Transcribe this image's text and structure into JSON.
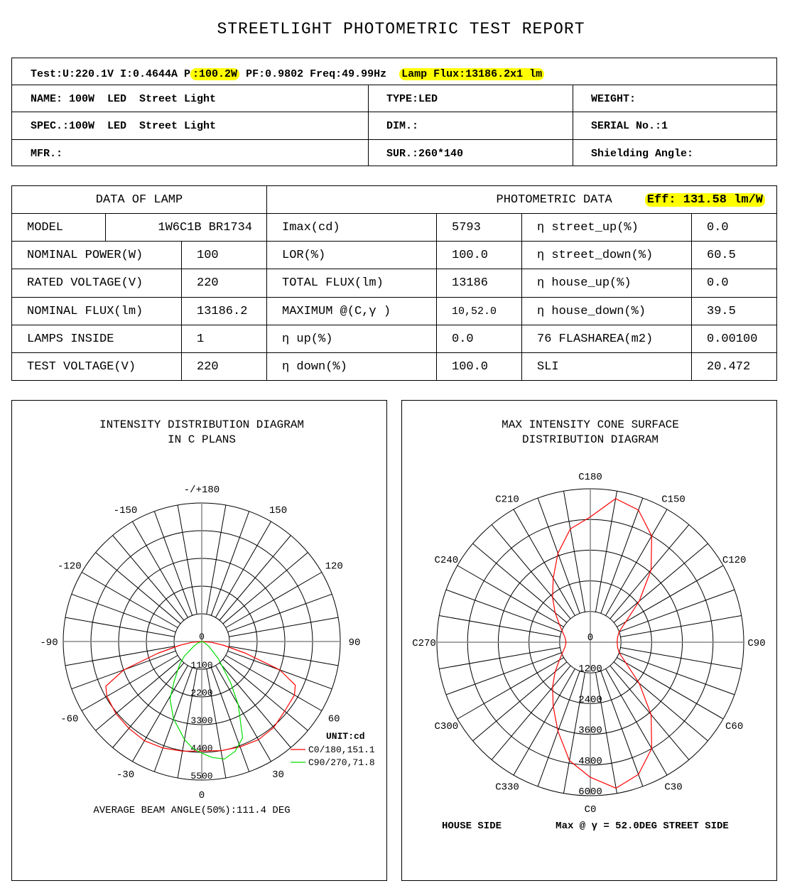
{
  "report_title": "STREETLIGHT PHOTOMETRIC TEST REPORT",
  "test_line": {
    "prefix": "Test:U:220.1V I:0.4644A P",
    "power": ":100.2W",
    "middle": " PF:0.9802 Freq:49.99Hz  ",
    "lamp_flux": "Lamp Flux:13186.2x1 lm"
  },
  "info": [
    [
      "NAME: 100W  LED  Street Light",
      "TYPE:LED",
      "WEIGHT:"
    ],
    [
      "SPEC.:100W  LED  Street Light",
      "DIM.:",
      "SERIAL No.:1"
    ],
    [
      "MFR.:",
      "SUR.:260*140",
      "Shielding Angle:"
    ]
  ],
  "lamp_data": {
    "header": "DATA OF LAMP",
    "model_label": "MODEL",
    "model_value": "1W6C1B BR1734",
    "rows": [
      [
        "NOMINAL POWER(W)",
        "100"
      ],
      [
        "RATED VOLTAGE(V)",
        "220"
      ],
      [
        "NOMINAL FLUX(lm)",
        "13186.2"
      ],
      [
        "LAMPS INSIDE",
        "1"
      ],
      [
        "TEST VOLTAGE(V)",
        "220"
      ]
    ]
  },
  "photometric_data": {
    "header": "PHOTOMETRIC DATA",
    "eff": "Eff: 131.58 lm/W",
    "rows": [
      [
        "Imax(cd)",
        "5793",
        "η street_up(%)",
        "0.0"
      ],
      [
        "LOR(%)",
        "100.0",
        "η street_down(%)",
        "60.5"
      ],
      [
        "TOTAL FLUX(lm)",
        "13186",
        "η house_up(%)",
        "0.0"
      ],
      [
        "MAXIMUM @(C,γ )",
        "10,52.0",
        "η house_down(%)",
        "39.5"
      ],
      [
        "η up(%)",
        "0.0",
        "76 FLASHAREA(m2)",
        "0.00100"
      ],
      [
        "η down(%)",
        "100.0",
        "SLI",
        "20.472"
      ]
    ]
  },
  "chart_data": [
    {
      "type": "polar-line",
      "title": "INTENSITY DISTRIBUTION DIAGRAM",
      "subtitle": "IN C PLANS",
      "unit_label": "UNIT:cd",
      "radial_ticks": [
        "0",
        "1100",
        "2200",
        "3300",
        "4400",
        "5500"
      ],
      "radial_max": 5500,
      "angle_labels": [
        "-/+180",
        "150",
        "120",
        "90",
        "60",
        "30",
        "0",
        "-30",
        "-60",
        "-90",
        "-120",
        "-150"
      ],
      "grid": true,
      "legend_position": "bottom-right",
      "footer": "AVERAGE BEAM ANGLE(50%):111.4 DEG",
      "series": [
        {
          "name": "C0/180,151.1",
          "color": "#ff0000",
          "angles": [
            -90,
            -85,
            -80,
            -75,
            -70,
            -65,
            -60,
            -50,
            -40,
            -30,
            -20,
            -10,
            0,
            10,
            20,
            30,
            40,
            50,
            60,
            65,
            70,
            75,
            80,
            85,
            90
          ],
          "values": [
            0,
            400,
            900,
            1800,
            3300,
            4200,
            4350,
            4450,
            4500,
            4550,
            4500,
            4420,
            4350,
            4400,
            4450,
            4500,
            4450,
            4300,
            4250,
            4100,
            3300,
            1800,
            900,
            400,
            0
          ]
        },
        {
          "name": "C90/270,71.8",
          "color": "#00dd00",
          "angles": [
            -90,
            -70,
            -60,
            -50,
            -44,
            -35,
            -29,
            -20,
            -10,
            -5,
            0,
            5,
            11,
            17,
            23,
            30,
            35,
            44,
            55,
            70,
            90
          ],
          "values": [
            0,
            150,
            350,
            900,
            1260,
            1900,
            2600,
            3270,
            3950,
            4250,
            4430,
            4620,
            4750,
            4550,
            4150,
            2900,
            2000,
            940,
            350,
            100,
            0
          ]
        }
      ]
    },
    {
      "type": "polar-line",
      "title": "MAX INTENSITY CONE SURFACE",
      "subtitle": "DISTRIBUTION DIAGRAM",
      "radial_ticks": [
        "0",
        "1200",
        "2400",
        "3600",
        "4800",
        "6000"
      ],
      "radial_max": 6000,
      "angle_labels": [
        "C0",
        "C30",
        "C60",
        "C90",
        "C120",
        "C150",
        "C180",
        "C210",
        "C240",
        "C270",
        "C300",
        "C330"
      ],
      "grid": true,
      "footer_left": "HOUSE SIDE",
      "footer_right": "Max @ γ  = 52.0DEG STREET SIDE",
      "series": [
        {
          "color": "#ff0000",
          "angles": [
            0,
            10,
            20,
            30,
            40,
            50,
            60,
            70,
            80,
            90,
            100,
            110,
            120,
            130,
            140,
            150,
            160,
            170,
            180,
            190,
            200,
            210,
            220,
            230,
            240,
            250,
            260,
            270,
            280,
            290,
            300,
            310,
            320,
            330,
            340,
            350
          ],
          "values": [
            5280,
            5793,
            5500,
            4800,
            3700,
            2500,
            1600,
            1200,
            1080,
            1050,
            1080,
            1200,
            1600,
            2500,
            3700,
            4800,
            5500,
            5700,
            4900,
            4500,
            3700,
            2900,
            2300,
            1800,
            1400,
            1150,
            1000,
            950,
            1000,
            1150,
            1400,
            1800,
            2300,
            2900,
            3700,
            4700
          ]
        }
      ]
    }
  ]
}
